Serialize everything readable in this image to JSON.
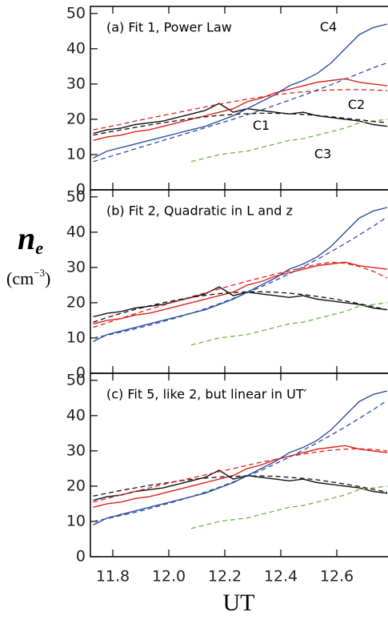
{
  "chart_data": [
    {
      "type": "line",
      "title": "(a) Fit 1, Power Law",
      "x": [
        11.73,
        11.78,
        11.83,
        11.88,
        11.93,
        11.98,
        12.03,
        12.08,
        12.13,
        12.18,
        12.23,
        12.28,
        12.33,
        12.38,
        12.43,
        12.48,
        12.53,
        12.58,
        12.63,
        12.68,
        12.73,
        12.78
      ],
      "xlim": [
        11.72,
        12.78
      ],
      "xticks": [
        11.8,
        12,
        12.2,
        12.4,
        12.6
      ],
      "ylim": [
        0,
        52
      ],
      "yticks": [
        0,
        10,
        20,
        30,
        40,
        50
      ],
      "series": [
        {
          "name": "C1",
          "color": "#111111",
          "style": "solid",
          "values": [
            16,
            17,
            17.5,
            18.5,
            19,
            19.5,
            20.5,
            21.5,
            22.5,
            24.5,
            22,
            23,
            22.5,
            22,
            21.5,
            22,
            21,
            20.5,
            20,
            19.5,
            18.5,
            18
          ]
        },
        {
          "name": "C2",
          "color": "#e0201b",
          "style": "solid",
          "values": [
            14,
            15,
            15.5,
            16.5,
            17,
            18,
            19,
            20,
            21,
            22,
            23,
            25,
            26,
            27.5,
            28.5,
            29.5,
            30.5,
            31,
            31.5,
            30.5,
            30,
            29.5
          ]
        },
        {
          "name": "C3",
          "color": "#6db33f",
          "style": "dashed",
          "values": [
            null,
            null,
            null,
            null,
            null,
            null,
            null,
            8,
            9,
            10,
            10.5,
            11,
            12,
            13,
            14,
            14.5,
            15.5,
            16.5,
            17.5,
            19,
            19.5,
            20
          ]
        },
        {
          "name": "C4",
          "color": "#2b4fa0",
          "style": "solid",
          "values": [
            9,
            11,
            12,
            13,
            14,
            15,
            16,
            17,
            18,
            19.5,
            21,
            23,
            25,
            27,
            29.5,
            31,
            33,
            36,
            40,
            44,
            46,
            47
          ]
        },
        {
          "color": "#111111",
          "style": "dashed",
          "values": [
            15.5,
            16.3,
            17,
            17.7,
            18.4,
            19,
            19.6,
            20.2,
            20.7,
            21.1,
            21.4,
            21.6,
            21.7,
            21.7,
            21.6,
            21.4,
            21.1,
            20.7,
            20.3,
            19.9,
            19.4,
            19
          ]
        },
        {
          "color": "#e0201b",
          "style": "dashed",
          "values": [
            17,
            17.8,
            18.6,
            19.5,
            20.3,
            21.1,
            21.9,
            22.7,
            23.5,
            24.3,
            25,
            25.7,
            26.3,
            26.9,
            27.4,
            27.8,
            28.1,
            28.3,
            28.4,
            28.4,
            28.3,
            28.1
          ]
        },
        {
          "color": "#2b4fa0",
          "style": "dashed",
          "values": [
            8,
            9.2,
            10.4,
            11.6,
            12.8,
            14,
            15.2,
            16.4,
            17.6,
            18.8,
            20,
            21.3,
            22.6,
            24,
            25.4,
            26.8,
            28.3,
            29.8,
            31.4,
            33,
            34.6,
            36
          ]
        }
      ]
    },
    {
      "type": "line",
      "title": "(b) Fit 2, Quadratic in L and z",
      "ylabel_symbol": "n",
      "ylabel_sub": "e",
      "ylabel_unit": "(cm",
      "ylabel_exp": "−3",
      "ylabel_close": ")",
      "x": [
        11.73,
        11.78,
        11.83,
        11.88,
        11.93,
        11.98,
        12.03,
        12.08,
        12.13,
        12.18,
        12.23,
        12.28,
        12.33,
        12.38,
        12.43,
        12.48,
        12.53,
        12.58,
        12.63,
        12.68,
        12.73,
        12.78
      ],
      "xlim": [
        11.72,
        12.78
      ],
      "xticks": [
        11.8,
        12,
        12.2,
        12.4,
        12.6
      ],
      "ylim": [
        0,
        52
      ],
      "yticks": [
        0,
        10,
        20,
        30,
        40,
        50
      ],
      "series": [
        {
          "color": "#111111",
          "style": "solid",
          "values": [
            16,
            17,
            17.5,
            18.5,
            19,
            19.5,
            20.5,
            21.5,
            22.5,
            24.5,
            22,
            23,
            22.5,
            22,
            21.5,
            22,
            21,
            20.5,
            20,
            19.5,
            18.5,
            18
          ]
        },
        {
          "color": "#e0201b",
          "style": "solid",
          "values": [
            14,
            15,
            15.5,
            16.5,
            17,
            18,
            19,
            20,
            21,
            22,
            23,
            25,
            26,
            27.5,
            28.5,
            29.5,
            30.5,
            31,
            31.5,
            30.5,
            30,
            29.5
          ]
        },
        {
          "color": "#6db33f",
          "style": "dashed",
          "values": [
            null,
            null,
            null,
            null,
            null,
            null,
            null,
            8,
            9,
            10,
            10.5,
            11,
            12,
            13,
            14,
            14.5,
            15.5,
            16.5,
            17.5,
            19,
            19.5,
            20
          ]
        },
        {
          "color": "#2b4fa0",
          "style": "solid",
          "values": [
            9,
            11,
            12,
            13,
            14,
            15,
            16,
            17,
            18,
            19.5,
            21,
            23,
            25,
            27,
            29.5,
            31,
            33,
            36,
            40,
            44,
            46,
            47
          ]
        },
        {
          "color": "#111111",
          "style": "dashed",
          "values": [
            14.5,
            15.8,
            17,
            18.1,
            19.1,
            20,
            20.8,
            21.5,
            22.1,
            22.6,
            22.9,
            23.1,
            23.1,
            23,
            22.7,
            22.3,
            21.8,
            21.2,
            20.5,
            19.7,
            18.9,
            18
          ]
        },
        {
          "color": "#e0201b",
          "style": "dashed",
          "values": [
            13,
            14.3,
            15.6,
            16.9,
            18.1,
            19.3,
            20.5,
            21.7,
            22.8,
            23.9,
            25,
            26.1,
            27.1,
            28.1,
            29,
            30,
            30.9,
            31.5,
            31.2,
            30.3,
            28.9,
            27
          ]
        },
        {
          "color": "#2b4fa0",
          "style": "dashed",
          "values": [
            10,
            10.8,
            11.7,
            12.6,
            13.6,
            14.7,
            15.8,
            17,
            18.3,
            19.7,
            21.2,
            22.8,
            24.5,
            26.3,
            28.2,
            30.2,
            32.3,
            34.5,
            36.8,
            39.2,
            41.7,
            44.3
          ]
        }
      ]
    },
    {
      "type": "line",
      "title": "(c) Fit 5, like 2, but linear in UT′",
      "xlabel": "UT",
      "x": [
        11.73,
        11.78,
        11.83,
        11.88,
        11.93,
        11.98,
        12.03,
        12.08,
        12.13,
        12.18,
        12.23,
        12.28,
        12.33,
        12.38,
        12.43,
        12.48,
        12.53,
        12.58,
        12.63,
        12.68,
        12.73,
        12.78
      ],
      "xlim": [
        11.72,
        12.78
      ],
      "xticks": [
        11.8,
        {
          "value": 12,
          "label": "12.0"
        },
        12.2,
        12.4,
        12.6
      ],
      "ylim": [
        0,
        52
      ],
      "yticks": [
        0,
        10,
        20,
        30,
        40,
        50
      ],
      "series": [
        {
          "color": "#111111",
          "style": "solid",
          "values": [
            16,
            17,
            17.5,
            18.5,
            19,
            19.5,
            20.5,
            21.5,
            22.5,
            24.5,
            22,
            23,
            22.5,
            22,
            21.5,
            22,
            21,
            20.5,
            20,
            19.5,
            18.5,
            18
          ]
        },
        {
          "color": "#e0201b",
          "style": "solid",
          "values": [
            14,
            15,
            15.5,
            16.5,
            17,
            18,
            19,
            20,
            21,
            22,
            23,
            25,
            26,
            27.5,
            28.5,
            29.5,
            30.5,
            31,
            31.5,
            30.5,
            30,
            29.5
          ]
        },
        {
          "color": "#6db33f",
          "style": "dashed",
          "values": [
            null,
            null,
            null,
            null,
            null,
            null,
            null,
            8,
            9,
            10,
            10.5,
            11,
            12,
            13,
            14,
            14.5,
            15.5,
            16.5,
            17.5,
            19,
            19.5,
            20
          ]
        },
        {
          "color": "#2b4fa0",
          "style": "solid",
          "values": [
            9,
            11,
            12,
            13,
            14,
            15,
            16,
            17,
            18,
            19.5,
            21,
            23,
            25,
            27,
            29.5,
            31,
            33,
            36,
            40,
            44,
            46,
            47
          ]
        },
        {
          "color": "#111111",
          "style": "dashed",
          "values": [
            17.2,
            18,
            18.8,
            19.5,
            20.2,
            20.8,
            21.4,
            21.9,
            22.3,
            22.6,
            22.8,
            22.9,
            22.9,
            22.8,
            22.5,
            22.2,
            21.8,
            21.2,
            20.6,
            19.9,
            19.1,
            18.3
          ]
        },
        {
          "color": "#e0201b",
          "style": "dashed",
          "values": [
            15.5,
            16.5,
            17.5,
            18.5,
            19.5,
            20.5,
            21.4,
            22.3,
            23.2,
            24.1,
            25,
            25.9,
            26.8,
            27.6,
            28.4,
            29.1,
            29.7,
            30.2,
            30.5,
            30.6,
            30.4,
            30
          ]
        },
        {
          "color": "#2b4fa0",
          "style": "dashed",
          "values": [
            10,
            10.8,
            11.7,
            12.6,
            13.6,
            14.7,
            15.8,
            17,
            18.3,
            19.7,
            21.2,
            22.8,
            24.5,
            26.3,
            28.2,
            30.2,
            32.3,
            34.5,
            36.8,
            39.2,
            41.7,
            44.3
          ]
        }
      ]
    }
  ]
}
